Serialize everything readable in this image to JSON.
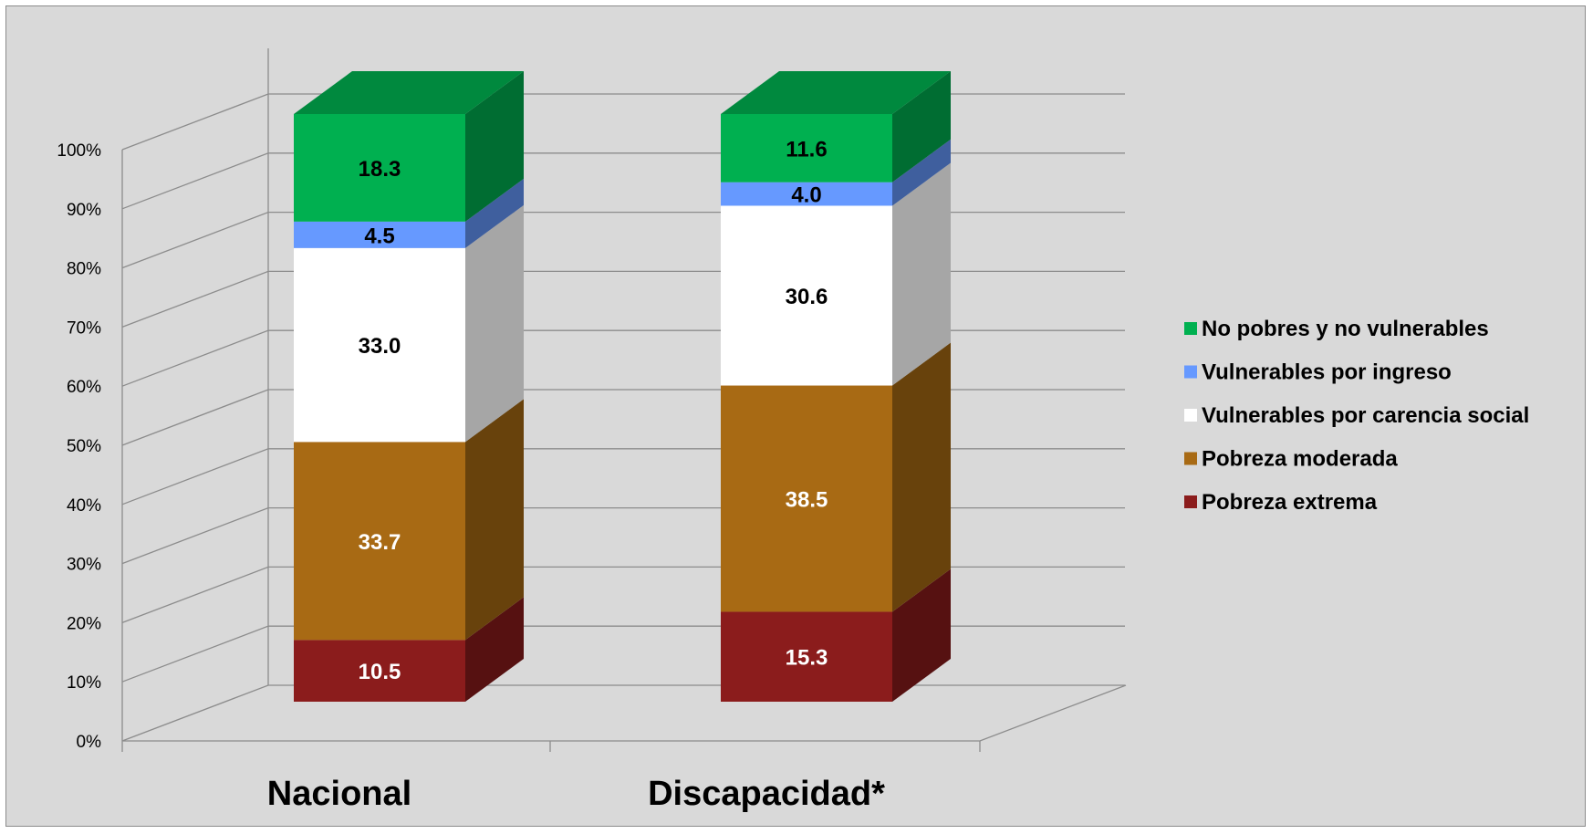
{
  "chart_data": {
    "type": "bar",
    "stacked": true,
    "style": "3d",
    "categories": [
      "Nacional",
      "Discapacidad*"
    ],
    "series": [
      {
        "name": "Pobreza extrema",
        "values": [
          10.5,
          15.3
        ],
        "color": "#8b1c1c",
        "label_color": "#ffffff"
      },
      {
        "name": "Pobreza moderada",
        "values": [
          33.7,
          38.5
        ],
        "color": "#a86a14",
        "label_color": "#ffffff"
      },
      {
        "name": "Vulnerables por carencia social",
        "values": [
          33.0,
          30.6
        ],
        "color": "#ffffff",
        "label_color": "#000000"
      },
      {
        "name": "Vulnerables por ingreso",
        "values": [
          4.5,
          4.0
        ],
        "color": "#6699ff",
        "label_color": "#000000"
      },
      {
        "name": "No pobres y no vulnerables",
        "values": [
          18.3,
          11.6
        ],
        "color": "#00b050",
        "label_color": "#000000"
      }
    ],
    "y_ticks": [
      "0%",
      "10%",
      "20%",
      "30%",
      "40%",
      "50%",
      "60%",
      "70%",
      "80%",
      "90%",
      "100%"
    ],
    "ylim": [
      0,
      100
    ],
    "grid": true,
    "legend_position": "right"
  }
}
